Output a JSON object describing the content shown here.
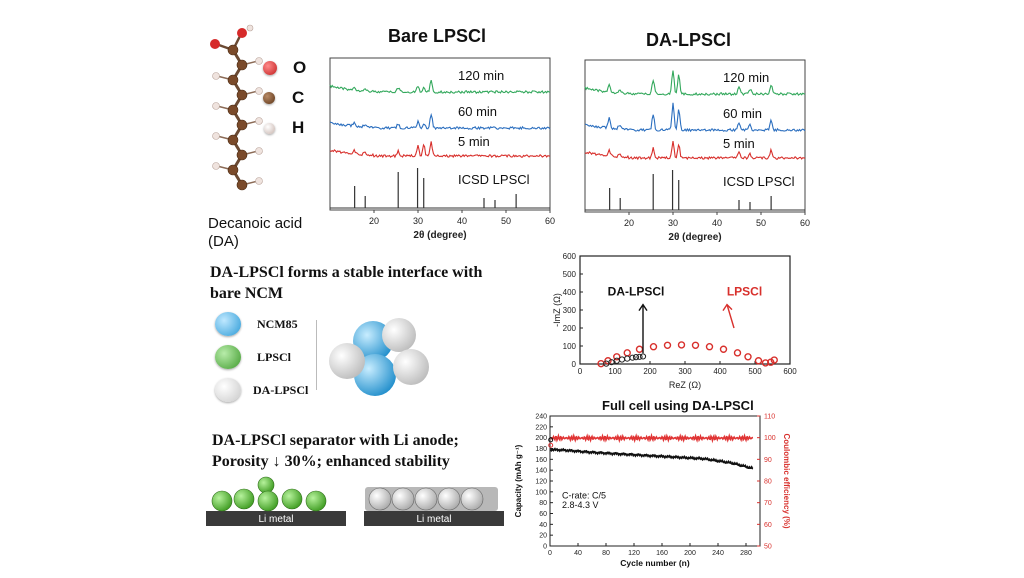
{
  "molecule": {
    "legend": [
      {
        "symbol": "O",
        "color": "#d62a2a"
      },
      {
        "symbol": "C",
        "color": "#7a4a2a"
      },
      {
        "symbol": "H",
        "color": "#efe3de"
      }
    ],
    "name_line1": "Decanoic acid",
    "name_line2": "(DA)"
  },
  "xrd": {
    "bare_title": "Bare LPSCl",
    "da_title": "DA-LPSCl",
    "xlabel": "2θ (degree)",
    "x_ticks": [
      "20",
      "30",
      "40",
      "50",
      "60"
    ],
    "trace_labels": [
      "120 min",
      "60 min",
      "5 min",
      "ICSD LPSCl"
    ],
    "colors": {
      "120": "#33a85c",
      "60": "#2c6fbf",
      "5": "#d8302c",
      "icsd": "#333333"
    }
  },
  "interface": {
    "heading_line1": "DA-LPSCl forms a stable interface with",
    "heading_line2": "bare NCM",
    "legend": [
      {
        "label": "NCM85",
        "color": "#3aa7e0"
      },
      {
        "label": "LPSCl",
        "color": "#4aa83a"
      },
      {
        "label": "DA-LPSCl",
        "color": "#e8e8e8"
      }
    ]
  },
  "separator": {
    "heading_line1": "DA-LPSCl separator with Li anode;",
    "heading_line2": "Porosity ↓ 30%; enhanced stability",
    "li_label": "Li metal"
  },
  "eis": {
    "xlabel": "ReZ (Ω)",
    "ylabel": "-ImZ (Ω)",
    "label_da": "DA-LPSCl",
    "label_lpscl": "LPSCl",
    "x_ticks": [
      "0",
      "100",
      "200",
      "300",
      "400",
      "500",
      "600"
    ],
    "y_ticks": [
      "0",
      "100",
      "200",
      "300",
      "400",
      "500",
      "600"
    ]
  },
  "cycling": {
    "title": "Full cell using DA-LPSCl",
    "xlabel": "Cycle number (n)",
    "ylabel_left": "Capacity (mAh g⁻¹)",
    "ylabel_right": "Coulombic efficiency (%)",
    "note_line1": "C-rate: C/5",
    "note_line2": "2.8-4.3 V",
    "x_ticks": [
      "0",
      "40",
      "80",
      "120",
      "160",
      "200",
      "240",
      "280"
    ],
    "y_left_ticks": [
      "0",
      "20",
      "40",
      "60",
      "80",
      "100",
      "120",
      "140",
      "160",
      "180",
      "200",
      "220",
      "240"
    ],
    "y_right_ticks": [
      "50",
      "60",
      "70",
      "80",
      "90",
      "100",
      "110"
    ]
  },
  "chart_data": [
    {
      "type": "line",
      "title": "Bare LPSCl",
      "xlabel": "2θ (degree)",
      "xlim": [
        10,
        60
      ],
      "series": [
        {
          "name": "120 min",
          "peaks": [
            15.5,
            17.8,
            25.5,
            30.0,
            31.3,
            33.0
          ]
        },
        {
          "name": "60 min",
          "peaks": [
            15.5,
            17.8,
            25.5,
            30.0,
            31.3,
            33.0
          ]
        },
        {
          "name": "5 min",
          "peaks": [
            15.5,
            17.8,
            25.5,
            30.0,
            31.3,
            33.0
          ]
        },
        {
          "name": "ICSD LPSCl",
          "peaks": [
            15.6,
            18.0,
            25.5,
            29.9,
            31.3,
            45.0,
            47.5,
            52.3
          ]
        }
      ]
    },
    {
      "type": "line",
      "title": "DA-LPSCl",
      "xlabel": "2θ (degree)",
      "xlim": [
        10,
        60
      ],
      "series": [
        {
          "name": "120 min",
          "peaks": [
            15.5,
            17.8,
            25.5,
            30.0,
            31.3,
            45.0,
            47.5,
            52.3
          ]
        },
        {
          "name": "60 min",
          "peaks": [
            15.5,
            17.8,
            25.5,
            30.0,
            31.3,
            45.0,
            47.5,
            52.3
          ]
        },
        {
          "name": "5 min",
          "peaks": [
            15.5,
            17.8,
            25.5,
            30.0,
            31.3,
            45.0,
            47.5,
            52.3
          ]
        },
        {
          "name": "ICSD LPSCl",
          "peaks": [
            15.6,
            18.0,
            25.5,
            29.9,
            31.3,
            45.0,
            47.5,
            52.3
          ]
        }
      ]
    },
    {
      "type": "scatter",
      "xlabel": "ReZ (Ω)",
      "ylabel": "-ImZ (Ω)",
      "xlim": [
        0,
        600
      ],
      "ylim": [
        0,
        600
      ],
      "series": [
        {
          "name": "DA-LPSCl",
          "color": "#222222",
          "points": [
            [
              75,
              2
            ],
            [
              90,
              10
            ],
            [
              105,
              18
            ],
            [
              120,
              25
            ],
            [
              135,
              30
            ],
            [
              150,
              35
            ],
            [
              160,
              38
            ],
            [
              170,
              40
            ],
            [
              180,
              42
            ]
          ]
        },
        {
          "name": "LPSCl",
          "color": "#d8302c",
          "points": [
            [
              60,
              2
            ],
            [
              80,
              18
            ],
            [
              105,
              40
            ],
            [
              135,
              62
            ],
            [
              170,
              82
            ],
            [
              210,
              96
            ],
            [
              250,
              104
            ],
            [
              290,
              106
            ],
            [
              330,
              104
            ],
            [
              370,
              96
            ],
            [
              410,
              82
            ],
            [
              450,
              62
            ],
            [
              480,
              40
            ],
            [
              510,
              18
            ],
            [
              530,
              6
            ],
            [
              545,
              10
            ],
            [
              555,
              22
            ]
          ]
        }
      ]
    },
    {
      "type": "line",
      "title": "Full cell using DA-LPSCl",
      "xlabel": "Cycle number (n)",
      "ylabel": "Capacity (mAh g⁻¹)",
      "xlim": [
        0,
        300
      ],
      "ylim": [
        0,
        240
      ],
      "y2lim": [
        50,
        110
      ],
      "series": [
        {
          "name": "Capacity",
          "axis": "left",
          "color": "#111111",
          "x": [
            1,
            20,
            60,
            100,
            140,
            180,
            220,
            260,
            290
          ],
          "y": [
            178,
            177,
            173,
            170,
            167,
            164,
            161,
            153,
            143
          ]
        },
        {
          "name": "Coulombic efficiency",
          "axis": "right",
          "color": "#e03434",
          "x": [
            1,
            50,
            100,
            150,
            200,
            250,
            290
          ],
          "y": [
            100,
            99.8,
            99.8,
            99.8,
            99.8,
            99.8,
            99.8
          ]
        }
      ]
    }
  ]
}
